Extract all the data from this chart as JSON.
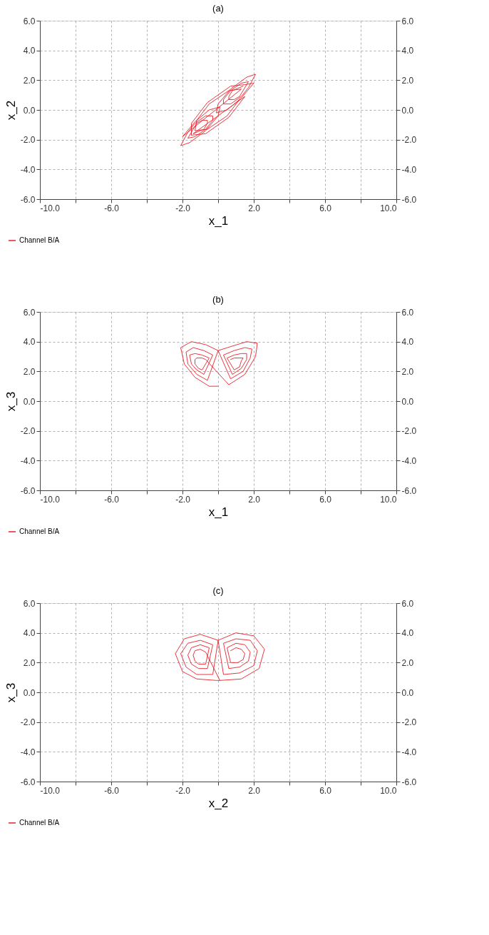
{
  "chart_data": [
    {
      "type": "line",
      "title": "(a)",
      "xlabel": "x_1",
      "ylabel": "x_2",
      "grid": true,
      "legend": "bottom left",
      "xlim": [
        -10,
        10
      ],
      "xticks": [
        {
          "value": -10,
          "label": "-10.0"
        },
        {
          "value": -8,
          "label": null
        },
        {
          "value": -6,
          "label": "-6.0"
        },
        {
          "value": -4,
          "label": null
        },
        {
          "value": -2,
          "label": "-2.0"
        },
        {
          "value": 0,
          "label": null
        },
        {
          "value": 2,
          "label": "2.0"
        },
        {
          "value": 4,
          "label": null
        },
        {
          "value": 6,
          "label": "6.0"
        },
        {
          "value": 8,
          "label": null
        },
        {
          "value": 10,
          "label": "10.0"
        }
      ],
      "ylim": [
        -6,
        6
      ],
      "yticks": [
        {
          "value": -6,
          "label": "-6.0"
        },
        {
          "value": -4,
          "label": "-4.0"
        },
        {
          "value": -2,
          "label": "-2.0"
        },
        {
          "value": 0,
          "label": "0.0"
        },
        {
          "value": 2,
          "label": "2.0"
        },
        {
          "value": 4,
          "label": "4.0"
        },
        {
          "value": 6,
          "label": "6.0"
        }
      ],
      "y2lim": [
        -6,
        6
      ],
      "y2ticks": [
        {
          "value": -6,
          "label": "-6.0"
        },
        {
          "value": -4,
          "label": "-4.0"
        },
        {
          "value": -2,
          "label": "-2.0"
        },
        {
          "value": 0,
          "label": "0.0"
        },
        {
          "value": 2,
          "label": "2.0"
        },
        {
          "value": 4,
          "label": "4.0"
        },
        {
          "value": 6,
          "label": "6.0"
        }
      ],
      "line_style": "solid",
      "series": [
        {
          "name": "Channel B/A",
          "color": "#e8202a",
          "x": [
            1.4,
            1.2,
            0.8,
            0.6,
            0.6,
            0.9,
            1.2,
            1.4,
            1.7,
            1.3,
            0.7,
            0.3,
            0.3,
            0.7,
            1.3,
            1.7,
            2.1,
            1.6,
            0.7,
            0.0,
            -0.1,
            0.5,
            1.3,
            2.0,
            1.5,
            0.7,
            -0.6,
            -1.5,
            -1.5,
            -0.7,
            0.6,
            1.5,
            -1.4,
            -1.2,
            -0.8,
            -0.6,
            -0.6,
            -0.9,
            -1.2,
            -1.4,
            -1.7,
            -1.3,
            -0.7,
            -0.3,
            -0.3,
            -0.7,
            -1.3,
            -1.7,
            -2.1,
            -1.6,
            -0.7,
            0.0,
            0.1,
            -0.5,
            -1.3,
            -2.0,
            1.3,
            0.6,
            -0.5,
            -1.2,
            -1.3,
            -0.6,
            0.5,
            1.2
          ],
          "values": [
            1.6,
            1.5,
            1.3,
            0.9,
            0.7,
            0.7,
            0.9,
            1.3,
            1.9,
            1.8,
            1.3,
            0.7,
            0.4,
            0.4,
            0.9,
            1.5,
            2.4,
            2.2,
            1.4,
            0.4,
            -0.2,
            0.0,
            0.8,
            1.8,
            1.7,
            1.6,
            0.5,
            -0.9,
            -1.7,
            -1.6,
            -0.5,
            0.9,
            -1.6,
            -1.5,
            -1.3,
            -0.9,
            -0.7,
            -0.7,
            -0.9,
            -1.3,
            -1.9,
            -1.8,
            -1.3,
            -0.7,
            -0.4,
            -0.4,
            -0.9,
            -1.5,
            -2.4,
            -2.2,
            -1.4,
            -0.4,
            0.2,
            0.0,
            -0.8,
            -1.8,
            1.4,
            1.3,
            0.4,
            -0.7,
            -1.4,
            -1.3,
            -0.4,
            0.7
          ]
        }
      ]
    },
    {
      "type": "line",
      "title": "(b)",
      "xlabel": "x_1",
      "ylabel": "x_3",
      "grid": true,
      "legend": "bottom left",
      "xlim": [
        -10,
        10
      ],
      "xticks": [
        {
          "value": -10,
          "label": "-10.0"
        },
        {
          "value": -8,
          "label": null
        },
        {
          "value": -6,
          "label": "-6.0"
        },
        {
          "value": -4,
          "label": null
        },
        {
          "value": -2,
          "label": "-2.0"
        },
        {
          "value": 0,
          "label": null
        },
        {
          "value": 2,
          "label": "2.0"
        },
        {
          "value": 4,
          "label": null
        },
        {
          "value": 6,
          "label": "6.0"
        },
        {
          "value": 8,
          "label": null
        },
        {
          "value": 10,
          "label": "10.0"
        }
      ],
      "ylim": [
        -6,
        6
      ],
      "yticks": [
        {
          "value": -6,
          "label": "-6.0"
        },
        {
          "value": -4,
          "label": "-4.0"
        },
        {
          "value": -2,
          "label": "-2.0"
        },
        {
          "value": 0,
          "label": "0.0"
        },
        {
          "value": 2,
          "label": "2.0"
        },
        {
          "value": 4,
          "label": "4.0"
        },
        {
          "value": 6,
          "label": "6.0"
        }
      ],
      "y2lim": [
        -6,
        6
      ],
      "y2ticks": [
        {
          "value": -6,
          "label": "-6.0"
        },
        {
          "value": -4,
          "label": "-4.0"
        },
        {
          "value": -2,
          "label": "-2.0"
        },
        {
          "value": 0,
          "label": "0.0"
        },
        {
          "value": 2,
          "label": "2.0"
        },
        {
          "value": 4,
          "label": "4.0"
        },
        {
          "value": 6,
          "label": "6.0"
        }
      ],
      "line_style": "solid",
      "series": [
        {
          "name": "Channel B/A",
          "color": "#e8202a",
          "x": [
            0.7,
            0.9,
            1.2,
            1.4,
            1.3,
            1.2,
            0.9,
            0.5,
            0.9,
            1.3,
            1.6,
            1.6,
            1.3,
            0.8,
            0.3,
            0.9,
            1.5,
            1.9,
            1.8,
            1.4,
            0.7,
            0.0,
            0.8,
            1.6,
            2.2,
            2.1,
            1.5,
            0.6,
            -0.7,
            -0.9,
            -1.2,
            -1.3,
            -1.3,
            -1.1,
            -0.9,
            -0.5,
            -0.9,
            -1.3,
            -1.6,
            -1.5,
            -1.2,
            -0.8,
            -0.3,
            -0.8,
            -1.4,
            -1.8,
            -1.7,
            -1.2,
            -0.6,
            0.0,
            -0.7,
            -1.5,
            -2.1,
            -1.9,
            -1.3,
            -0.5,
            0.0
          ],
          "values": [
            2.8,
            2.9,
            2.9,
            2.9,
            2.7,
            2.3,
            2.1,
            2.9,
            3.1,
            3.2,
            3.2,
            2.8,
            2.2,
            1.8,
            3.1,
            3.4,
            3.6,
            3.5,
            2.9,
            2.0,
            1.5,
            3.4,
            3.7,
            4.0,
            3.9,
            3.0,
            1.8,
            1.1,
            2.8,
            2.9,
            2.9,
            2.8,
            2.5,
            2.2,
            2.1,
            2.9,
            3.1,
            3.2,
            3.1,
            2.5,
            2.1,
            1.8,
            3.1,
            3.4,
            3.6,
            3.3,
            2.5,
            1.8,
            1.4,
            3.4,
            3.8,
            4.0,
            3.6,
            2.5,
            1.6,
            1.0,
            1.0
          ]
        }
      ]
    },
    {
      "type": "line",
      "title": "(c)",
      "xlabel": "x_2",
      "ylabel": "x_3",
      "grid": true,
      "legend": "bottom left",
      "xlim": [
        -10,
        10
      ],
      "xticks": [
        {
          "value": -10,
          "label": "-10.0"
        },
        {
          "value": -8,
          "label": null
        },
        {
          "value": -6,
          "label": "-6.0"
        },
        {
          "value": -4,
          "label": null
        },
        {
          "value": -2,
          "label": "-2.0"
        },
        {
          "value": 0,
          "label": null
        },
        {
          "value": 2,
          "label": "2.0"
        },
        {
          "value": 4,
          "label": null
        },
        {
          "value": 6,
          "label": "6.0"
        },
        {
          "value": 8,
          "label": null
        },
        {
          "value": 10,
          "label": "10.0"
        }
      ],
      "ylim": [
        -6,
        6
      ],
      "yticks": [
        {
          "value": -6,
          "label": "-6.0"
        },
        {
          "value": -4,
          "label": "-4.0"
        },
        {
          "value": -2,
          "label": "-2.0"
        },
        {
          "value": 0,
          "label": "0.0"
        },
        {
          "value": 2,
          "label": "2.0"
        },
        {
          "value": 4,
          "label": "4.0"
        },
        {
          "value": 6,
          "label": "6.0"
        }
      ],
      "y2lim": [
        -6,
        6
      ],
      "y2ticks": [
        {
          "value": -6,
          "label": "-6.0"
        },
        {
          "value": -4,
          "label": "-4.0"
        },
        {
          "value": -2,
          "label": "-2.0"
        },
        {
          "value": 0,
          "label": "0.0"
        },
        {
          "value": 2,
          "label": "2.0"
        },
        {
          "value": 4,
          "label": "4.0"
        },
        {
          "value": 6,
          "label": "6.0"
        }
      ],
      "line_style": "solid",
      "series": [
        {
          "name": "Channel B/A",
          "color": "#e8202a",
          "x": [
            0.7,
            1.0,
            1.3,
            1.5,
            1.4,
            1.1,
            0.7,
            0.5,
            1.0,
            1.5,
            1.8,
            1.7,
            1.2,
            0.6,
            0.3,
            1.0,
            1.8,
            2.2,
            2.0,
            1.2,
            0.3,
            0.0,
            1.0,
            2.0,
            2.6,
            2.3,
            1.3,
            0.1,
            -0.7,
            -1.0,
            -1.3,
            -1.4,
            -1.3,
            -1.1,
            -0.7,
            -0.5,
            -1.0,
            -1.5,
            -1.7,
            -1.5,
            -1.1,
            -0.6,
            -0.3,
            -1.0,
            -1.7,
            -2.1,
            -1.8,
            -1.2,
            -0.3,
            0.0,
            -1.0,
            -1.9,
            -2.4,
            -2.0,
            -1.2,
            -0.1,
            0.1
          ],
          "values": [
            2.8,
            3.0,
            2.9,
            2.6,
            2.2,
            2.0,
            2.0,
            3.0,
            3.3,
            3.2,
            2.7,
            2.1,
            1.7,
            1.6,
            3.3,
            3.6,
            3.5,
            2.8,
            1.8,
            1.3,
            1.2,
            3.5,
            4.0,
            3.8,
            2.9,
            1.6,
            0.9,
            0.8,
            2.7,
            2.9,
            2.8,
            2.5,
            2.1,
            1.9,
            1.9,
            3.0,
            3.2,
            3.0,
            2.5,
            1.9,
            1.6,
            1.6,
            3.2,
            3.5,
            3.3,
            2.6,
            1.7,
            1.2,
            1.2,
            3.5,
            3.9,
            3.6,
            2.6,
            1.4,
            0.9,
            0.8,
            0.8
          ]
        }
      ]
    }
  ]
}
